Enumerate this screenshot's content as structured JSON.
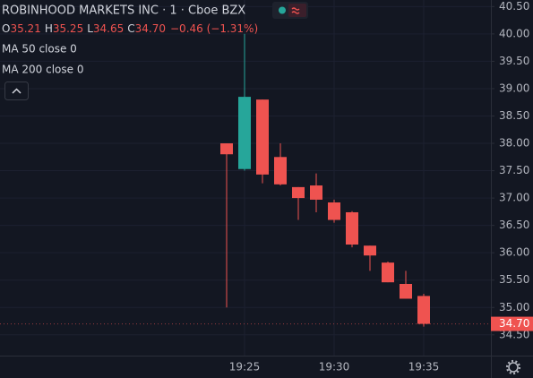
{
  "chart_data": {
    "type": "candlestick",
    "title": "ROBINHOOD MARKETS INC · 1 · Cboe BZX",
    "ohlc_text": [
      {
        "key": "O",
        "value": "35.21"
      },
      {
        "key": "H",
        "value": "35.25"
      },
      {
        "key": "L",
        "value": "34.65"
      },
      {
        "key": "C",
        "value": "34.70"
      }
    ],
    "change_text": "−0.46 (−1.31%)",
    "indicators": [
      "MA 50 close 0",
      "MA 200 close 0"
    ],
    "categories": [
      null,
      "19:25",
      null,
      null,
      null,
      null,
      "19:30",
      null,
      null,
      null,
      null,
      "19:35"
    ],
    "open": [
      38.0,
      37.53,
      38.8,
      37.75,
      37.2,
      37.23,
      36.92,
      36.74,
      36.13,
      35.82,
      35.43,
      35.21
    ],
    "high": [
      38.0,
      40.0,
      38.8,
      38.0,
      37.2,
      37.45,
      36.97,
      36.76,
      36.13,
      35.84,
      35.67,
      35.25
    ],
    "low": [
      35.0,
      37.5,
      37.27,
      37.23,
      36.6,
      36.74,
      36.55,
      36.1,
      35.67,
      35.46,
      35.16,
      34.65
    ],
    "close": [
      37.8,
      38.85,
      37.43,
      37.25,
      37.0,
      36.97,
      36.6,
      36.15,
      35.95,
      35.46,
      35.16,
      34.7
    ],
    "up_color": "#26a69a",
    "down_color": "#ef5350",
    "ylim": [
      34.12,
      40.62
    ],
    "yticks": [
      {
        "value": 34.5,
        "label": "34.50"
      },
      {
        "value": 35,
        "label": "35.00"
      },
      {
        "value": 35.5,
        "label": "35.50"
      },
      {
        "value": 36,
        "label": "36.00"
      },
      {
        "value": 36.5,
        "label": "36.50"
      },
      {
        "value": 37,
        "label": "37.00"
      },
      {
        "value": 37.5,
        "label": "37.50"
      },
      {
        "value": 38,
        "label": "38.00"
      },
      {
        "value": 38.5,
        "label": "38.50"
      },
      {
        "value": 39,
        "label": "39.00"
      },
      {
        "value": 39.5,
        "label": "39.50"
      },
      {
        "value": 40,
        "label": "40.00"
      },
      {
        "value": 40.5,
        "label": "40.50"
      }
    ],
    "last_price": {
      "value": 34.7,
      "label": "34.70"
    },
    "grid": true
  }
}
